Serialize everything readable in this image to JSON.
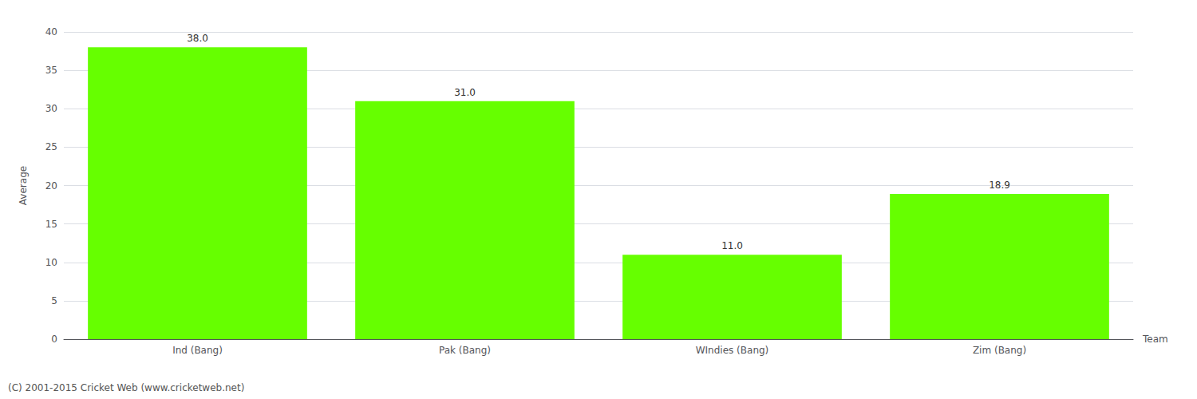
{
  "chart_data": {
    "type": "bar",
    "categories": [
      "Ind (Bang)",
      "Pak (Bang)",
      "WIndies (Bang)",
      "Zim (Bang)"
    ],
    "values": [
      38.0,
      31.0,
      11.0,
      18.9
    ],
    "value_labels": [
      "38.0",
      "31.0",
      "11.0",
      "18.9"
    ],
    "data_labels": true,
    "color": "#66ff00",
    "xlabel": "Team",
    "ylabel": "Average",
    "ylim": [
      0,
      40
    ],
    "yticks": [
      0,
      5,
      10,
      15,
      20,
      25,
      30,
      35,
      40
    ],
    "grid": true,
    "annotations": [
      "(C) 2001-2015 Cricket Web (www.cricketweb.net)"
    ]
  }
}
